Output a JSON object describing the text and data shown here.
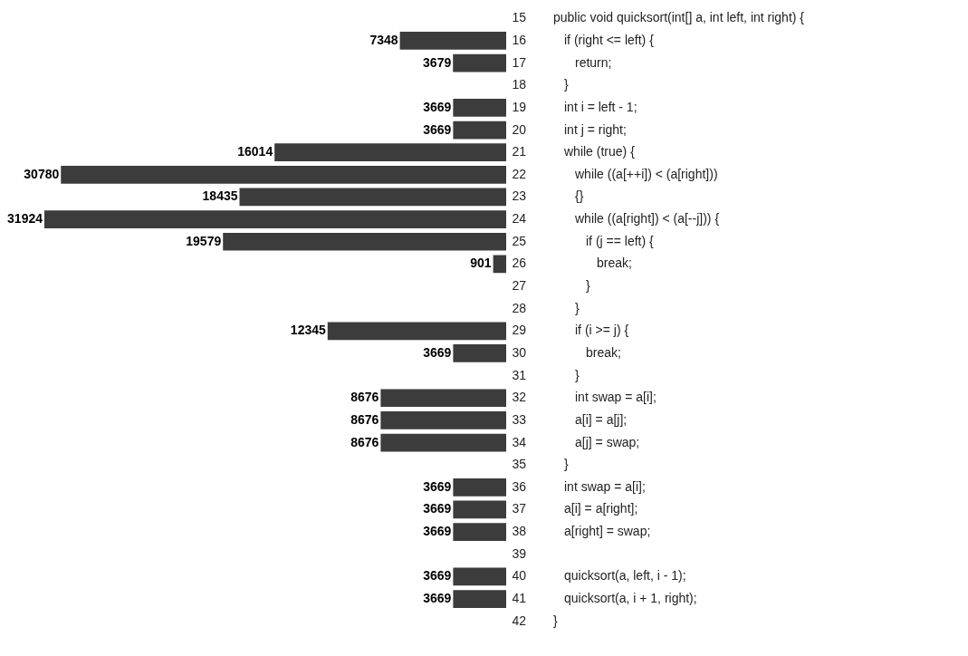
{
  "chart_data": {
    "type": "bar",
    "orientation": "horizontal",
    "data_labels": true,
    "color": "#3c3c3c",
    "grid": false,
    "categories": [
      "15",
      "16",
      "17",
      "18",
      "19",
      "20",
      "21",
      "22",
      "23",
      "24",
      "25",
      "26",
      "27",
      "28",
      "29",
      "30",
      "31",
      "32",
      "33",
      "34",
      "35",
      "36",
      "37",
      "38",
      "39",
      "40",
      "41",
      "42"
    ],
    "values": [
      null,
      7348,
      3679,
      null,
      3669,
      3669,
      16014,
      30780,
      18435,
      31924,
      19579,
      901,
      null,
      null,
      12345,
      3669,
      null,
      8676,
      8676,
      8676,
      null,
      3669,
      3669,
      3669,
      null,
      3669,
      3669,
      null
    ],
    "annotations": [
      "public void quicksort(int[] a, int left, int right) {",
      "  if (right <= left) {",
      "    return;",
      "  }",
      "  int i = left - 1;",
      "  int j = right;",
      "  while (true) {",
      "    while ((a[++i]) < (a[right]))",
      "    {}",
      "    while ((a[right]) < (a[--j])) {",
      "      if (j == left) {",
      "        break;",
      "      }",
      "    }",
      "    if (i >= j) {",
      "      break;",
      "    }",
      "    int swap = a[i];",
      "    a[i] = a[j];",
      "    a[j] = swap;",
      "  }",
      "  int swap = a[i];",
      "  a[i] = a[right];",
      "  a[right] = swap;",
      "  quicksort(a, left, i - 1);",
      "  quicksort(a, i + 1, right);",
      "}"
    ]
  }
}
